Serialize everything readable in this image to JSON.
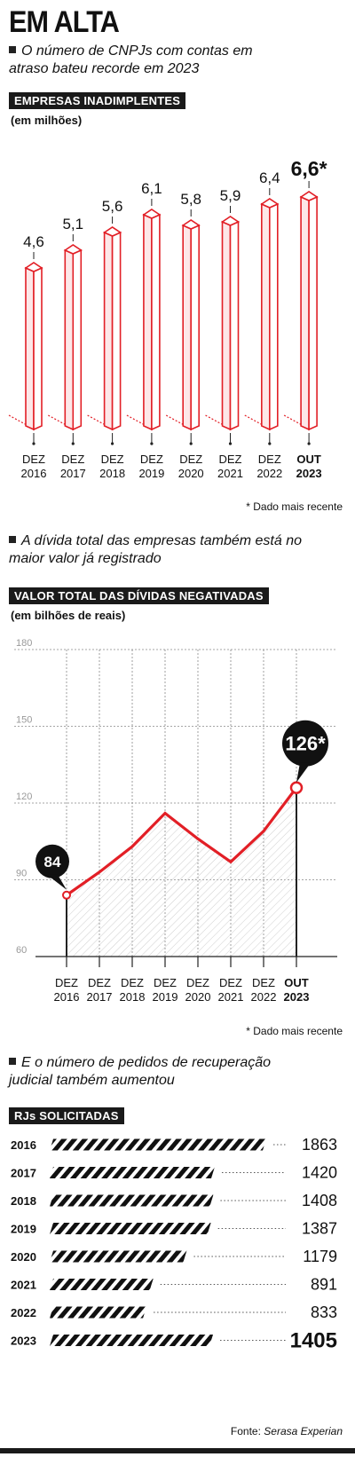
{
  "header": {
    "title": "EM ALTA"
  },
  "section1": {
    "subtitle": "O número de CNPJs com contas em atraso bateu recorde em 2023",
    "label": "EMPRESAS INADIMPLENTES",
    "unit": "(em milhões)",
    "note": "* Dado mais recente"
  },
  "section2": {
    "subtitle": "A dívida total das empresas também está no maior valor já registrado",
    "label": "VALOR TOTAL DAS DÍVIDAS NEGATIVADAS",
    "unit": "(em bilhões de reais)",
    "note": "* Dado mais recente"
  },
  "section3": {
    "subtitle": "E o número de pedidos de recuperação judicial também aumentou",
    "label": "RJs SOLICITADAS",
    "source_prefix": "Fonte: ",
    "source_name": "Serasa Experian"
  },
  "chart_data": [
    {
      "type": "bar",
      "title": "EMPRESAS INADIMPLENTES",
      "ylabel": "(em milhões)",
      "categories": [
        [
          "DEZ",
          "2016"
        ],
        [
          "DEZ",
          "2017"
        ],
        [
          "DEZ",
          "2018"
        ],
        [
          "DEZ",
          "2019"
        ],
        [
          "DEZ",
          "2020"
        ],
        [
          "DEZ",
          "2021"
        ],
        [
          "DEZ",
          "2022"
        ],
        [
          "OUT",
          "2023"
        ]
      ],
      "values": [
        4.6,
        5.1,
        5.6,
        6.1,
        5.8,
        5.9,
        6.4,
        6.6
      ],
      "value_labels": [
        "4,6",
        "5,1",
        "5,6",
        "6,1",
        "5,8",
        "5,9",
        "6,4",
        "6,6*"
      ],
      "ylim": [
        0,
        7
      ],
      "color": "#e21f26"
    },
    {
      "type": "line",
      "title": "VALOR TOTAL DAS DÍVIDAS NEGATIVADAS",
      "ylabel": "(em bilhões de reais)",
      "categories": [
        [
          "DEZ",
          "2016"
        ],
        [
          "DEZ",
          "2017"
        ],
        [
          "DEZ",
          "2018"
        ],
        [
          "DEZ",
          "2019"
        ],
        [
          "DEZ",
          "2020"
        ],
        [
          "DEZ",
          "2021"
        ],
        [
          "DEZ",
          "2022"
        ],
        [
          "OUT",
          "2023"
        ]
      ],
      "values": [
        84,
        93,
        103,
        116,
        106,
        97,
        109,
        126
      ],
      "callouts": [
        {
          "index": 0,
          "label": "84"
        },
        {
          "index": 7,
          "label": "126*"
        }
      ],
      "yticks": [
        "60",
        "90",
        "120",
        "150",
        "180"
      ],
      "ylim": [
        60,
        180
      ],
      "grid": true,
      "color": "#e21f26"
    },
    {
      "type": "bar",
      "orientation": "horizontal",
      "title": "RJs SOLICITADAS",
      "categories": [
        "2016",
        "2017",
        "2018",
        "2019",
        "2020",
        "2021",
        "2022",
        "2023"
      ],
      "values": [
        1863,
        1420,
        1408,
        1387,
        1179,
        891,
        833,
        1405
      ],
      "value_labels": [
        "1863",
        "1420",
        "1408",
        "1387",
        "1179",
        "891",
        "833",
        "1405"
      ]
    }
  ]
}
